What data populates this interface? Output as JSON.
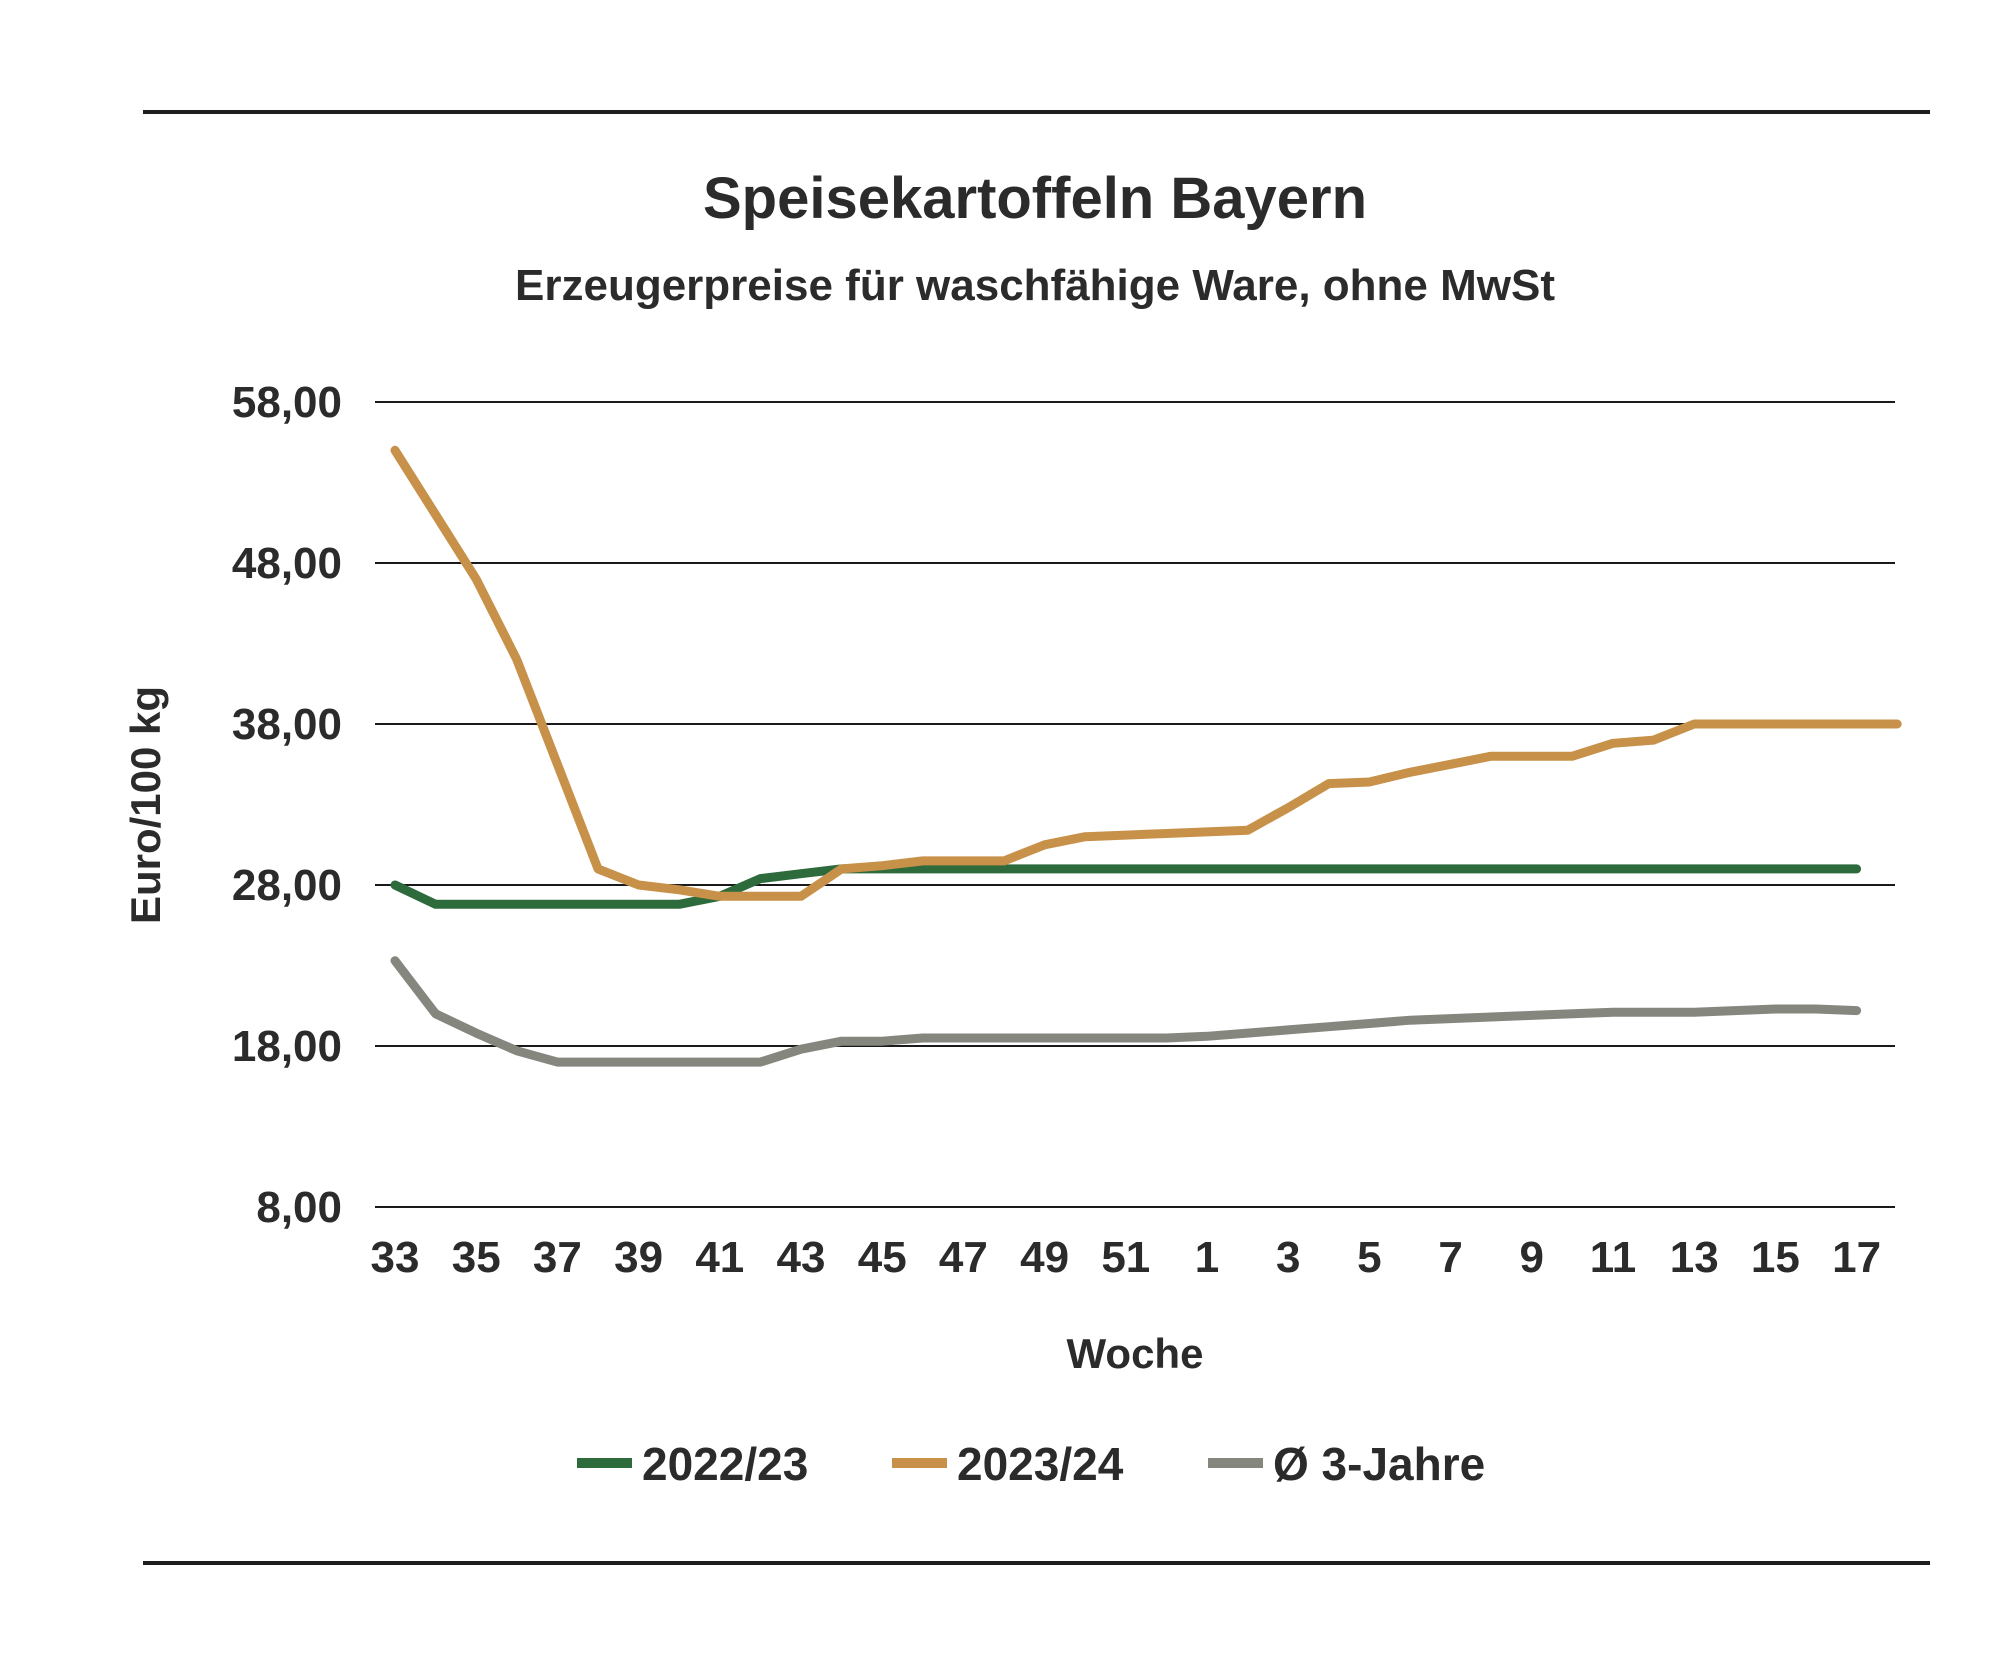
{
  "chart_data": {
    "type": "line",
    "title": "Speisekartoffeln Bayern",
    "subtitle": "Erzeugerpreise für waschfähige Ware, ohne MwSt",
    "xlabel": "Woche",
    "ylabel": "Euro/100 kg",
    "ylim": [
      8,
      58
    ],
    "yticks": [
      "8,00",
      "18,00",
      "28,00",
      "38,00",
      "48,00",
      "58,00"
    ],
    "ytick_values": [
      8,
      18,
      28,
      38,
      48,
      58
    ],
    "x": [
      33,
      34,
      35,
      36,
      37,
      38,
      39,
      40,
      41,
      42,
      43,
      44,
      45,
      46,
      47,
      48,
      49,
      50,
      51,
      52,
      1,
      2,
      3,
      4,
      5,
      6,
      7,
      8,
      9,
      10,
      11,
      12,
      13,
      14,
      15,
      16,
      17,
      18
    ],
    "xtick_labels": [
      "33",
      "35",
      "37",
      "39",
      "41",
      "43",
      "45",
      "47",
      "49",
      "51",
      "1",
      "3",
      "5",
      "7",
      "9",
      "11",
      "13",
      "15",
      "17"
    ],
    "grid": true,
    "legend_position": "bottom",
    "series": [
      {
        "name": "2022/23",
        "color": "#2e6b3c",
        "values": [
          28.0,
          26.8,
          26.8,
          26.8,
          26.8,
          26.8,
          26.8,
          26.8,
          27.3,
          28.4,
          28.7,
          29.0,
          29.0,
          29.0,
          29.0,
          29.0,
          29.0,
          29.0,
          29.0,
          29.0,
          29.0,
          29.0,
          29.0,
          29.0,
          29.0,
          29.0,
          29.0,
          29.0,
          29.0,
          29.0,
          29.0,
          29.0,
          29.0,
          29.0,
          29.0,
          29.0,
          29.0,
          null
        ]
      },
      {
        "name": "2023/24",
        "color": "#c8914a",
        "values": [
          55.0,
          51.0,
          47.0,
          42.0,
          35.5,
          29.0,
          28.0,
          27.7,
          27.3,
          27.3,
          27.3,
          29.0,
          29.2,
          29.5,
          29.5,
          29.5,
          30.5,
          31.0,
          31.1,
          31.2,
          31.3,
          31.4,
          32.8,
          34.3,
          34.4,
          35.0,
          35.5,
          36.0,
          36.0,
          36.0,
          36.8,
          37.0,
          38.0,
          38.0,
          38.0,
          38.0,
          38.0,
          38.0
        ]
      },
      {
        "name": "Ø 3-Jahre",
        "color": "#85877f",
        "values": [
          23.3,
          20.0,
          18.8,
          17.7,
          17.0,
          17.0,
          17.0,
          17.0,
          17.0,
          17.0,
          17.8,
          18.3,
          18.3,
          18.5,
          18.5,
          18.5,
          18.5,
          18.5,
          18.5,
          18.5,
          18.6,
          18.8,
          19.0,
          19.2,
          19.4,
          19.6,
          19.7,
          19.8,
          19.9,
          20.0,
          20.1,
          20.1,
          20.1,
          20.2,
          20.3,
          20.3,
          20.2,
          null
        ]
      }
    ]
  }
}
